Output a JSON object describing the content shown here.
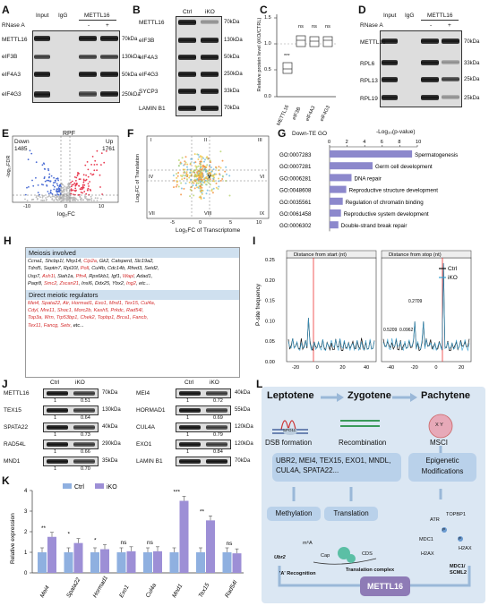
{
  "panels": {
    "A": "A",
    "B": "B",
    "C": "C",
    "D": "D",
    "E": "E",
    "F": "F",
    "G": "G",
    "H": "H",
    "I": "I",
    "J": "J",
    "K": "K",
    "L": "L"
  },
  "panelA": {
    "cols": [
      "Input",
      "IgG",
      "METTL16"
    ],
    "rnase": "RNase A",
    "minus": "-",
    "plus": "+",
    "rows": [
      "METTL16",
      "eIF3B",
      "eIF4A3",
      "eIF4G3"
    ],
    "kda": [
      "70kDa",
      "130kDa",
      "50kDa",
      "250kDa"
    ]
  },
  "panelB": {
    "cols": [
      "Ctrl",
      "iKO"
    ],
    "rows": [
      "METTL16",
      "eIF3B",
      "eIF4A3",
      "eIF4G3",
      "SYCP3",
      "LAMIN B1"
    ],
    "kda": [
      "70kDa",
      "130kDa",
      "50kDa",
      "250kDa",
      "33kDa",
      "70kDa"
    ]
  },
  "panelC": {
    "ylabel": "Relative protein level (iKO/CTRL)",
    "yticks": [
      "1.5",
      "1.0",
      "0.5",
      "0.0"
    ],
    "stars": "***",
    "ns": "ns",
    "xticks": [
      "METTL16",
      "eIF3B",
      "eIF4A3",
      "eIF4G3"
    ]
  },
  "panelD": {
    "cols": [
      "Input",
      "IgG",
      "METTL16"
    ],
    "rnase": "RNase A",
    "minus": "-",
    "plus": "+",
    "rows": [
      "METTL16",
      "RPL6",
      "RPL13",
      "RPL19"
    ],
    "kda": [
      "70kDa",
      "33kDa",
      "25kDa",
      "25kDa"
    ]
  },
  "panelE": {
    "title": "RPF",
    "down_label": "Down",
    "down_count": "1485",
    "up_label": "Up",
    "up_count": "1761",
    "ylabel": "-log₁₀FDR",
    "xlabel": "log₂FC",
    "xticks": [
      "-10",
      "0",
      "10"
    ],
    "yticks": [
      "15",
      "10",
      "5",
      "0"
    ]
  },
  "panelF": {
    "ylabel": "Log₂FC of Translation",
    "xlabel": "Log₂FC of Transcriptome",
    "quadrants": [
      "I",
      "II",
      "III",
      "IV",
      "V",
      "VI",
      "VII",
      "VIII",
      "IX"
    ],
    "xticks": [
      "-5",
      "0",
      "5",
      "10"
    ],
    "yticks": [
      "10",
      "5",
      "0",
      "-5"
    ]
  },
  "chart_data": [
    {
      "type": "bar",
      "title": "Down-TE GO",
      "xlabel": "-Log₁₀(p-value)",
      "xticks": [
        "0",
        "2",
        "4",
        "6",
        "8",
        "10"
      ],
      "categories": [
        "GO:0007283",
        "GO:0007281",
        "GO:0006281",
        "GO:0048608",
        "GO:0035561",
        "GO:0061458",
        "GO:0006302"
      ],
      "terms": [
        "Spermatogenesis",
        "Germ cell development",
        "DNA repair",
        "Reproductive structure development",
        "Regulation of chromatin binding",
        "Reproductive system development",
        "Double-strand break repair"
      ],
      "values": [
        9.4,
        4.9,
        2.5,
        1.9,
        1.5,
        1.3,
        1.0
      ],
      "xlim": [
        0,
        10
      ]
    },
    {
      "type": "bar",
      "title": "",
      "ylabel": "Relative expression",
      "yticks": [
        "0",
        "1",
        "2",
        "3",
        "4"
      ],
      "categories": [
        "Mei4",
        "Spata22",
        "Hormad1",
        "Exo1",
        "Cul4a",
        "Mnd1",
        "Tex15",
        "Rad54l"
      ],
      "series": [
        {
          "name": "Ctrl",
          "values": [
            1.0,
            1.0,
            1.0,
            1.0,
            1.0,
            1.0,
            1.0,
            1.0
          ]
        },
        {
          "name": "iKO",
          "values": [
            1.75,
            1.45,
            1.15,
            1.05,
            1.05,
            3.5,
            2.55,
            0.95
          ]
        }
      ],
      "significance": [
        "**",
        "*",
        "*",
        "ns",
        "ns",
        "***",
        "**",
        "ns"
      ],
      "ylim": [
        0,
        4
      ]
    },
    {
      "type": "line",
      "title": "",
      "ylabel": "P-site frequency",
      "yticks": [
        "0.00",
        "0.05",
        "0.10",
        "0.15",
        "0.20",
        "0.25"
      ],
      "subplots": [
        {
          "title": "Distance from start (nt)",
          "xticks": [
            "-20",
            "0",
            "20",
            "40"
          ]
        },
        {
          "title": "Distance from stop (nt)",
          "xticks": [
            "-40",
            "-20",
            "0",
            "20"
          ]
        }
      ],
      "series": [
        {
          "name": "Ctrl"
        },
        {
          "name": "iKO"
        }
      ],
      "annotations": [
        "0.2709",
        "0.0962",
        "0.5209"
      ]
    }
  ],
  "panelH": {
    "meiosis_header": "Meiosis involved",
    "meiosis_lines": [
      [
        [
          "Ccna1, Shcbp1l, Nlrp14, ",
          0
        ],
        [
          "Cip2a",
          1
        ],
        [
          ", Gk2, Catsperd, Slc19a2,",
          0
        ]
      ],
      [
        [
          "Tdrd5, Septin7, Rpl10l, ",
          0
        ],
        [
          "Poll",
          1
        ],
        [
          ", Cul4b, Cdc14b, Rfwd3, Setd2,",
          0
        ]
      ],
      [
        [
          "Usp7, ",
          0
        ],
        [
          "Ash1l",
          1
        ],
        [
          ", Siah1a, ",
          0
        ],
        [
          "Pfn4",
          1
        ],
        [
          ", Rps6kb1, Igf1, ",
          0
        ],
        [
          "Wapl",
          1
        ],
        [
          ", Adad1,",
          0
        ]
      ],
      [
        [
          "Paqr8, ",
          0
        ],
        [
          "Smc2",
          1
        ],
        [
          ", ",
          0
        ],
        [
          "Zscan21",
          1
        ],
        [
          ", Insl6, Ddx25, Ybx2, ",
          0
        ],
        [
          "Ing2",
          1
        ],
        [
          ", etc...",
          0
        ]
      ]
    ],
    "direct_header": "Direct meiotic regulators",
    "direct_lines": [
      [
        [
          "Mei4, Spata22, Atr, Hormad1, Exo1, Mnd1, Tex15, Cul4a,",
          1
        ]
      ],
      [
        [
          "Cdyl, Mre11, Shoc1, Morc2b, Kash5, Prkdc, Rad54l,",
          1
        ]
      ],
      [
        [
          "Top3a, Wrn, Trp53bp1, Chek2, Topbp1, Brca1, Fancb,",
          1
        ]
      ],
      [
        [
          "Tex11, Fancg, Setx, ",
          1
        ],
        [
          "etc...",
          0
        ]
      ]
    ]
  },
  "panelJ": {
    "cols": [
      "Ctrl",
      "iKO"
    ],
    "left_rows": [
      "METTL16",
      "TEX15",
      "SPATA22",
      "RAD54L",
      "MND1"
    ],
    "left_kda": [
      "70kDa",
      "130kDa",
      "40kDa",
      "290kDa",
      "35kDa"
    ],
    "left_values": [
      [
        "1",
        "0.51"
      ],
      [
        "1",
        "0.64"
      ],
      [
        "1",
        "0.73"
      ],
      [
        "1",
        "0.66"
      ],
      [
        "1",
        "0.70"
      ]
    ],
    "right_rows": [
      "MEI4",
      "HORMAD1",
      "CUL4A",
      "EXO1",
      "LAMIN B1"
    ],
    "right_kda": [
      "40kDa",
      "55kDa",
      "120kDa",
      "120kDa",
      "70kDa"
    ],
    "right_values": [
      [
        "1",
        "0.72"
      ],
      [
        "1",
        "0.69"
      ],
      [
        "1",
        "0.79"
      ],
      [
        "1",
        "0.84"
      ]
    ]
  },
  "panelL": {
    "stages": [
      "Leptotene",
      "Zygotene",
      "Pachytene"
    ],
    "dsb": "DSB formation",
    "spo11": "SPO11",
    "recombination": "Recombination",
    "msci": "MSCI",
    "xy": "X Y",
    "targets": "UBR2, MEI4, TEX15, EXO1, MNDL, CUL4A, SPATA22...",
    "epigenetic": "Epigenetic Modifications",
    "methylation": "Methylation",
    "translation": "Translation",
    "m6a": "m⁶A",
    "ubr2": "Ubr2",
    "cap": "Cap",
    "cds": "CDS",
    "a_recog": "'A' Recognition",
    "trans_complex": "Translation complex",
    "atr": "ATR",
    "topbp1": "TOPBP1",
    "mdc1": "MDC1",
    "h2ax": "H2AX",
    "p": "P",
    "mdc1_scml2": "MDC1/ SCML2",
    "mettl16": "METTL16"
  },
  "panelK_legend": {
    "ctrl": "Ctrl",
    "iko": "iKO"
  },
  "colors": {
    "ctrl_bar": "#8fb0e0",
    "iko_bar": "#9d8fd6",
    "up": "#e8394f",
    "down": "#4a6cd4",
    "go_bar": "#8c88cc",
    "l_panel": "#dbe7f3",
    "mettl16_box": "#8e7bb6"
  }
}
